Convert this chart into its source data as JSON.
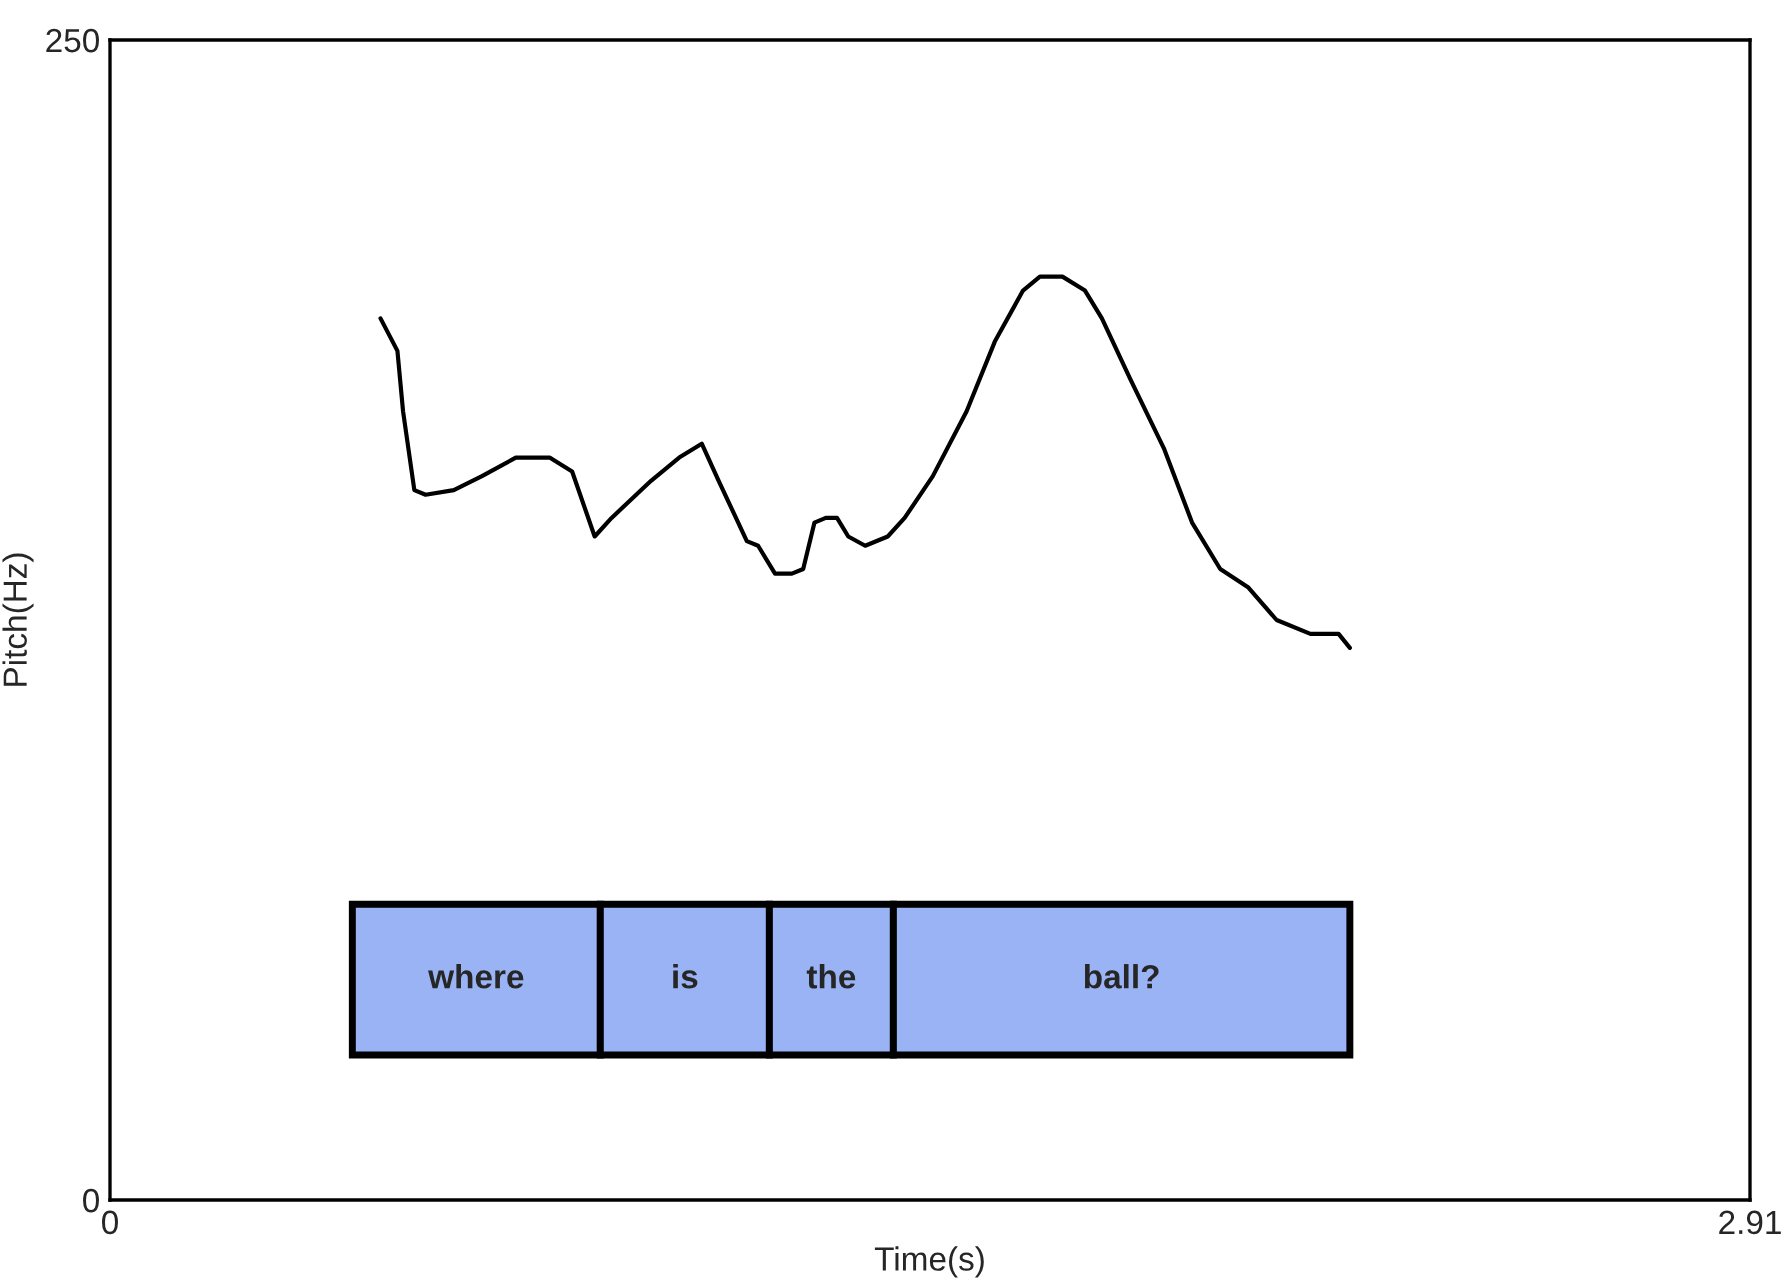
{
  "chart_data": {
    "type": "line",
    "xlabel": "Time(s)",
    "ylabel": "Pitch(Hz)",
    "xlim": [
      0,
      2.91
    ],
    "ylim": [
      0,
      250
    ],
    "xticks": [
      0,
      2.91
    ],
    "yticks": [
      0,
      250
    ],
    "series": [
      {
        "color": "#000000",
        "x": [
          0.48,
          0.51,
          0.52,
          0.54,
          0.56,
          0.61,
          0.66,
          0.72,
          0.78,
          0.82,
          0.86,
          0.89,
          0.96,
          1.01,
          1.05,
          1.08,
          1.13,
          1.15,
          1.18,
          1.21,
          1.23,
          1.25,
          1.27,
          1.29,
          1.31,
          1.34,
          1.38,
          1.41,
          1.46,
          1.52,
          1.57,
          1.62,
          1.65,
          1.69,
          1.73,
          1.76,
          1.81,
          1.87,
          1.92,
          1.97,
          2.02,
          2.07,
          2.13,
          2.18,
          2.2
        ],
        "values": [
          190,
          183,
          170,
          153,
          152,
          153,
          156,
          160,
          160,
          157,
          143,
          147,
          155,
          160,
          163,
          155,
          142,
          141,
          135,
          135,
          136,
          146,
          147,
          147,
          143,
          141,
          143,
          147,
          156,
          170,
          185,
          196,
          199,
          199,
          196,
          190,
          177,
          162,
          146,
          136,
          132,
          125,
          122,
          122,
          119
        ]
      }
    ],
    "bands": [
      {
        "axis": "x",
        "from": 0.43,
        "to": 0.87,
        "label": "where",
        "color": "#99b3f5"
      },
      {
        "axis": "x",
        "from": 0.87,
        "to": 1.17,
        "label": "is",
        "color": "#99b3f5"
      },
      {
        "axis": "x",
        "from": 1.17,
        "to": 1.39,
        "label": "the",
        "color": "#99b3f5"
      },
      {
        "axis": "x",
        "from": 1.39,
        "to": 2.2,
        "label": "ball?",
        "color": "#99b3f5"
      }
    ]
  }
}
